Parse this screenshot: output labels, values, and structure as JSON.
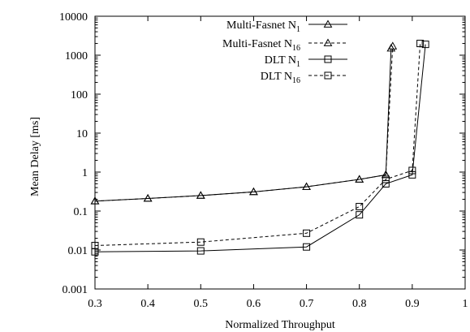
{
  "chart_data": {
    "type": "line",
    "title": "",
    "xlabel": "Normalized Throughput",
    "ylabel": "Mean Delay [ms]",
    "xlim": [
      0.3,
      1.0
    ],
    "ylim": [
      0.001,
      10000
    ],
    "yscale": "log",
    "grid": false,
    "legend_position": "top-left",
    "x_ticks": [
      "0.3",
      "0.4",
      "0.5",
      "0.6",
      "0.7",
      "0.8",
      "0.9",
      "1"
    ],
    "x_tick_values": [
      0.3,
      0.4,
      0.5,
      0.6,
      0.7,
      0.8,
      0.9,
      1.0
    ],
    "y_ticks": [
      "0.001",
      "0.01",
      "0.1",
      "1",
      "10",
      "100",
      "1000",
      "10000"
    ],
    "y_tick_values": [
      0.001,
      0.01,
      0.1,
      1,
      10,
      100,
      1000,
      10000
    ],
    "series": [
      {
        "name": "Multi-Fasnet N",
        "name_sub": "1",
        "marker": "triangle",
        "line": "solid",
        "x": [
          0.3,
          0.4,
          0.5,
          0.6,
          0.7,
          0.8,
          0.85,
          0.86
        ],
        "y": [
          0.18,
          0.21,
          0.25,
          0.31,
          0.42,
          0.65,
          0.85,
          1500
        ]
      },
      {
        "name": "Multi-Fasnet N",
        "name_sub": "16",
        "marker": "triangle",
        "line": "dashed",
        "x": [
          0.3,
          0.4,
          0.5,
          0.6,
          0.7,
          0.8,
          0.85,
          0.863
        ],
        "y": [
          0.18,
          0.21,
          0.25,
          0.31,
          0.42,
          0.65,
          0.85,
          1700
        ]
      },
      {
        "name": "DLT N",
        "name_sub": "1",
        "marker": "square",
        "line": "solid",
        "x": [
          0.3,
          0.5,
          0.7,
          0.8,
          0.85,
          0.9,
          0.925
        ],
        "y": [
          0.009,
          0.0095,
          0.012,
          0.08,
          0.5,
          0.85,
          1900
        ]
      },
      {
        "name": "DLT N",
        "name_sub": "16",
        "marker": "square",
        "line": "dashed",
        "x": [
          0.3,
          0.5,
          0.7,
          0.8,
          0.85,
          0.9,
          0.915
        ],
        "y": [
          0.013,
          0.016,
          0.027,
          0.13,
          0.65,
          1.1,
          2000
        ]
      }
    ]
  }
}
